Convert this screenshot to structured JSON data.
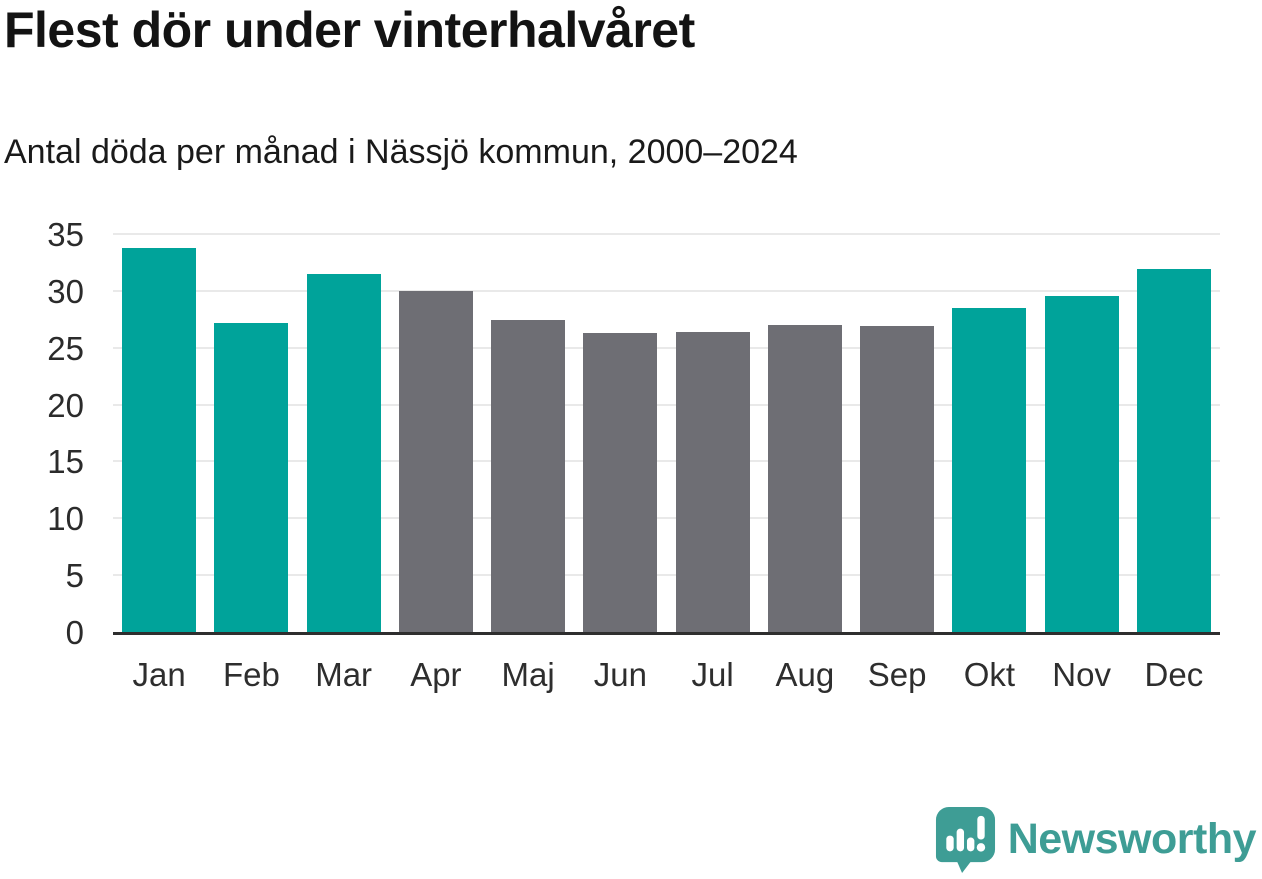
{
  "title": "Flest dör under vinterhalvåret",
  "subtitle": "Antal döda per månad i Nässjö kommun, 2000–2024",
  "colors": {
    "winter_bar": "#00A39A",
    "summer_bar": "#6E6E74",
    "gridline": "#E9E9E9",
    "axis_line": "#2E2E2E",
    "title_text": "#131313",
    "tick_text": "#2B2B2B",
    "logo_teal": "#3E9D95"
  },
  "chart_data": {
    "type": "bar",
    "categories": [
      "Jan",
      "Feb",
      "Mar",
      "Apr",
      "Maj",
      "Jun",
      "Jul",
      "Aug",
      "Sep",
      "Okt",
      "Nov",
      "Dec"
    ],
    "values": [
      33.9,
      27.3,
      31.6,
      30.1,
      27.5,
      26.4,
      26.5,
      27.1,
      27.0,
      28.6,
      29.6,
      32.0
    ],
    "bar_seasons": [
      "winter",
      "winter",
      "winter",
      "summer",
      "summer",
      "summer",
      "summer",
      "summer",
      "summer",
      "winter",
      "winter",
      "winter"
    ],
    "title": "Flest dör under vinterhalvåret",
    "subtitle": "Antal döda per månad i Nässjö kommun, 2000–2024",
    "xlabel": "",
    "ylabel": "",
    "ylim": [
      0,
      35
    ],
    "yticks": [
      0,
      5,
      10,
      15,
      20,
      25,
      30,
      35
    ],
    "grid": true,
    "legend_position": "none"
  },
  "logo": {
    "text": "Newsworthy",
    "icon": "newsworthy-bubble-bar-chart-icon"
  }
}
